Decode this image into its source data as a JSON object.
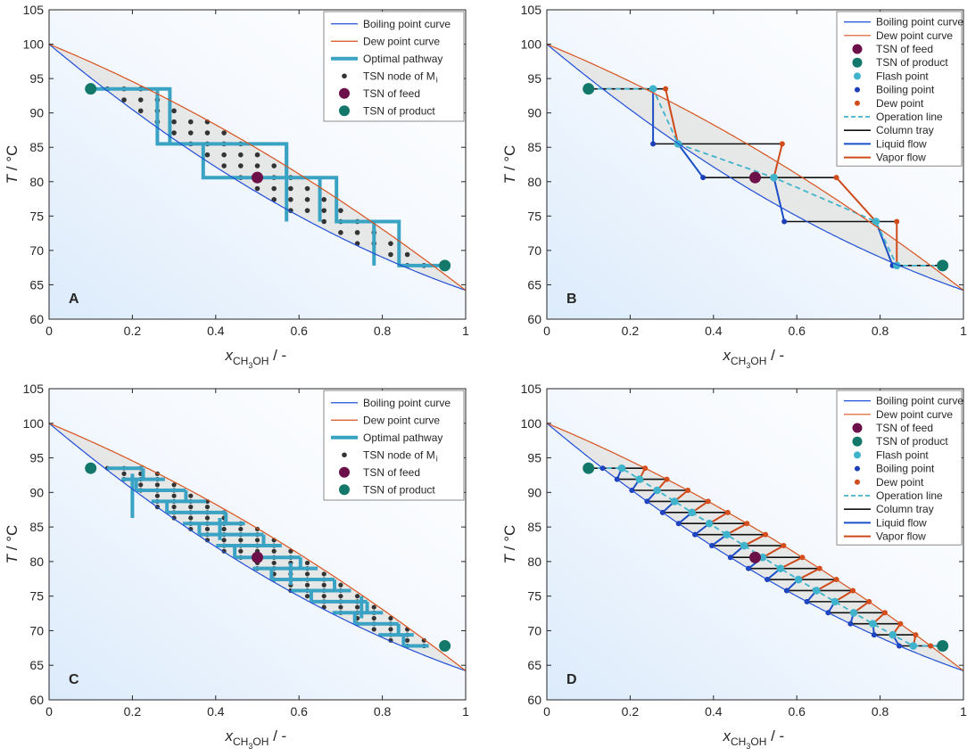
{
  "chart_data": [
    {
      "panel": "A",
      "type": "line",
      "xlabel_main": "x",
      "xlabel_sub": "CH",
      "xlabel_sub2": "3",
      "xlabel_sub3": "OH",
      "xlabel_tail": " / -",
      "ylabel_main": "T",
      "ylabel_tail": " / °C",
      "xlim": [
        0,
        1
      ],
      "ylim": [
        60,
        105
      ],
      "xticks": [
        "0",
        "0.2",
        "0.4",
        "0.6",
        "0.8",
        "1"
      ],
      "yticks": [
        "60",
        "65",
        "70",
        "75",
        "80",
        "85",
        "90",
        "95",
        "100",
        "105"
      ],
      "legend_position": "top-right",
      "legend": [
        "Boiling point curve",
        "Dew point curve",
        "Optimal pathway",
        "TSN node of M",
        "TSN of feed",
        "TSN of product"
      ],
      "legend_sub": "i",
      "grid": "coarse",
      "feed": [
        0.5,
        80.6
      ],
      "product_start": [
        0.1,
        93.5
      ],
      "product_end": [
        0.95,
        67.8
      ],
      "optimal_pathway": [
        [
          0.1,
          93.5
        ],
        [
          0.26,
          93.5
        ],
        [
          0.26,
          85.5
        ],
        [
          0.29,
          85.5
        ],
        [
          0.29,
          93.5
        ],
        [
          0.26,
          93.5
        ],
        [
          0.26,
          85.5
        ],
        [
          0.37,
          85.5
        ],
        [
          0.37,
          80.6
        ],
        [
          0.57,
          80.6
        ],
        [
          0.57,
          85.5
        ],
        [
          0.37,
          85.5
        ],
        [
          0.37,
          80.6
        ],
        [
          0.69,
          80.6
        ],
        [
          0.69,
          74.2
        ],
        [
          0.84,
          74.2
        ],
        [
          0.84,
          67.8
        ],
        [
          0.95,
          67.8
        ]
      ]
    },
    {
      "panel": "B",
      "type": "line",
      "xlabel_main": "x",
      "xlabel_sub": "CH",
      "xlabel_sub2": "3",
      "xlabel_sub3": "OH",
      "xlabel_tail": " / -",
      "ylabel_main": "T",
      "ylabel_tail": " / °C",
      "xlim": [
        0,
        1
      ],
      "ylim": [
        60,
        105
      ],
      "xticks": [
        "0",
        "0.2",
        "0.4",
        "0.6",
        "0.8",
        "1"
      ],
      "yticks": [
        "60",
        "65",
        "70",
        "75",
        "80",
        "85",
        "90",
        "95",
        "100",
        "105"
      ],
      "legend_position": "top-right",
      "legend": [
        "Boiling point curve",
        "Dew point curve",
        "TSN of feed",
        "TSN of product",
        "Flash point",
        "Boiling point",
        "Dew point",
        "Operation line",
        "Column tray",
        "Liquid flow",
        "Vapor flow"
      ],
      "feed": [
        0.5,
        80.6
      ],
      "product_start": [
        0.1,
        93.5
      ],
      "product_end": [
        0.95,
        67.8
      ],
      "trays": [
        {
          "T": 93.5,
          "x_flash": 0.255,
          "x_boil": 0.255,
          "x_dew": 0.285
        },
        {
          "T": 85.5,
          "x_flash": 0.315,
          "x_boil": 0.255,
          "x_dew": 0.565
        },
        {
          "T": 80.6,
          "x_flash": 0.545,
          "x_boil": 0.375,
          "x_dew": 0.695
        },
        {
          "T": 74.2,
          "x_flash": 0.79,
          "x_boil": 0.57,
          "x_dew": 0.84
        },
        {
          "T": 67.8,
          "x_flash": 0.84,
          "x_boil": 0.83,
          "x_dew": 0.84
        }
      ]
    },
    {
      "panel": "C",
      "type": "line",
      "xlabel_main": "x",
      "xlabel_sub": "CH",
      "xlabel_sub2": "3",
      "xlabel_sub3": "OH",
      "xlabel_tail": " / -",
      "ylabel_main": "T",
      "ylabel_tail": " / °C",
      "xlim": [
        0,
        1
      ],
      "ylim": [
        60,
        105
      ],
      "xticks": [
        "0",
        "0.2",
        "0.4",
        "0.6",
        "0.8",
        "1"
      ],
      "yticks": [
        "60",
        "65",
        "70",
        "75",
        "80",
        "85",
        "90",
        "95",
        "100",
        "105"
      ],
      "legend_position": "top-right",
      "legend": [
        "Boiling point curve",
        "Dew point curve",
        "Optimal pathway",
        "TSN node of M",
        "TSN of feed",
        "TSN of product"
      ],
      "legend_sub": "i",
      "grid": "fine",
      "feed": [
        0.5,
        80.6
      ],
      "product_start": [
        0.1,
        93.5
      ],
      "product_end": [
        0.95,
        67.8
      ]
    },
    {
      "panel": "D",
      "type": "line",
      "xlabel_main": "x",
      "xlabel_sub": "CH",
      "xlabel_sub2": "3",
      "xlabel_sub3": "OH",
      "xlabel_tail": " / -",
      "ylabel_main": "T",
      "ylabel_tail": " / °C",
      "xlim": [
        0,
        1
      ],
      "ylim": [
        60,
        105
      ],
      "xticks": [
        "0",
        "0.2",
        "0.4",
        "0.6",
        "0.8",
        "1"
      ],
      "yticks": [
        "60",
        "65",
        "70",
        "75",
        "80",
        "85",
        "90",
        "95",
        "100",
        "105"
      ],
      "legend_position": "top-right",
      "legend": [
        "Boiling point curve",
        "Dew point curve",
        "TSN of feed",
        "TSN of product",
        "Flash point",
        "Boiling point",
        "Dew point",
        "Operation line",
        "Column tray",
        "Liquid flow",
        "Vapor flow"
      ],
      "feed": [
        0.5,
        80.6
      ],
      "product_start": [
        0.1,
        93.5
      ],
      "product_end": [
        0.95,
        67.8
      ],
      "tray_T": [
        93.5,
        91.9,
        90.3,
        88.7,
        87.1,
        85.5,
        83.9,
        82.3,
        80.6,
        79.0,
        77.4,
        75.8,
        74.2,
        72.6,
        71.0,
        69.4,
        67.8
      ]
    }
  ],
  "colors": {
    "boiling": "#1f4fd6",
    "dew": "#d9531e",
    "pathway": "#3aa3c4",
    "node": "#333333",
    "feed": "#6b1048",
    "product": "#13786a",
    "flash": "#3fb3cc",
    "boilpt": "#1c3fb7",
    "dewpt": "#d24b1a",
    "tray": "#111111",
    "liquid": "#1c4fc5",
    "vapor": "#cf4a1b",
    "envelope": "#e4e4e4"
  }
}
